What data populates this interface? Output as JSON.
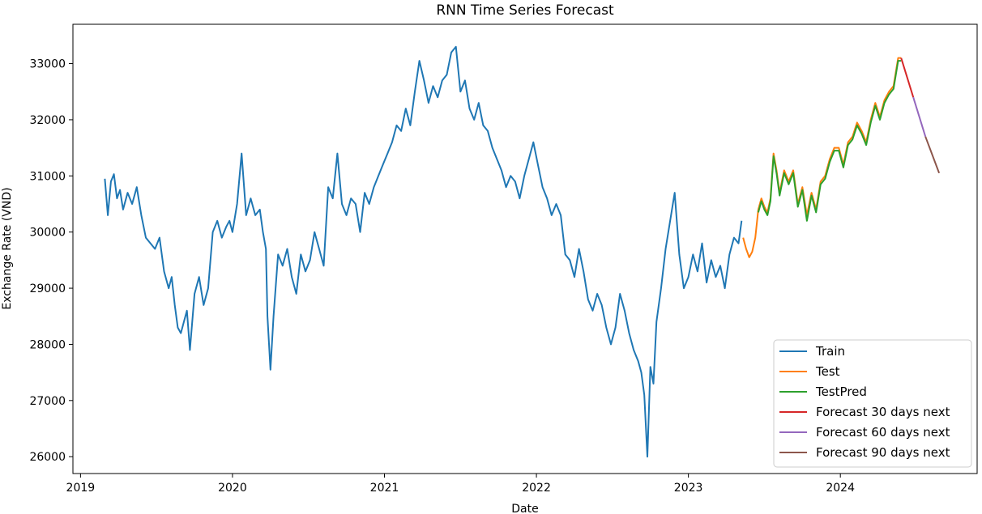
{
  "chart_data": {
    "type": "line",
    "title": "RNN Time Series Forecast",
    "xlabel": "Date",
    "ylabel": "Exchange Rate (VND)",
    "x_unit": "year",
    "xlim": [
      2018.95,
      2024.9
    ],
    "ylim": [
      25700,
      33700
    ],
    "xticks": [
      2019,
      2020,
      2021,
      2022,
      2023,
      2024
    ],
    "xtick_labels": [
      "2019",
      "2020",
      "2021",
      "2022",
      "2023",
      "2024"
    ],
    "yticks": [
      26000,
      27000,
      28000,
      29000,
      30000,
      31000,
      32000,
      33000
    ],
    "ytick_labels": [
      "26000",
      "27000",
      "28000",
      "29000",
      "30000",
      "31000",
      "32000",
      "33000"
    ],
    "grid": false,
    "legend_position": "lower-right",
    "series": [
      {
        "name": "Train",
        "color": "#1f77b4",
        "x": [
          2019.16,
          2019.18,
          2019.2,
          2019.22,
          2019.24,
          2019.26,
          2019.28,
          2019.31,
          2019.34,
          2019.37,
          2019.4,
          2019.43,
          2019.46,
          2019.49,
          2019.52,
          2019.55,
          2019.58,
          2019.6,
          2019.62,
          2019.64,
          2019.66,
          2019.68,
          2019.7,
          2019.72,
          2019.75,
          2019.78,
          2019.81,
          2019.84,
          2019.87,
          2019.9,
          2019.93,
          2019.96,
          2019.98,
          2020.0,
          2020.03,
          2020.06,
          2020.09,
          2020.12,
          2020.15,
          2020.18,
          2020.2,
          2020.22,
          2020.23,
          2020.25,
          2020.27,
          2020.3,
          2020.33,
          2020.36,
          2020.39,
          2020.42,
          2020.45,
          2020.48,
          2020.51,
          2020.54,
          2020.57,
          2020.6,
          2020.63,
          2020.66,
          2020.69,
          2020.72,
          2020.75,
          2020.78,
          2020.81,
          2020.84,
          2020.87,
          2020.9,
          2020.93,
          2020.96,
          2020.99,
          2021.02,
          2021.05,
          2021.08,
          2021.11,
          2021.14,
          2021.17,
          2021.2,
          2021.23,
          2021.26,
          2021.29,
          2021.32,
          2021.35,
          2021.38,
          2021.41,
          2021.44,
          2021.47,
          2021.5,
          2021.53,
          2021.56,
          2021.59,
          2021.62,
          2021.65,
          2021.68,
          2021.71,
          2021.74,
          2021.77,
          2021.8,
          2021.83,
          2021.86,
          2021.89,
          2021.92,
          2021.95,
          2021.98,
          2022.01,
          2022.04,
          2022.07,
          2022.1,
          2022.13,
          2022.16,
          2022.19,
          2022.22,
          2022.25,
          2022.28,
          2022.31,
          2022.34,
          2022.37,
          2022.4,
          2022.43,
          2022.46,
          2022.49,
          2022.52,
          2022.55,
          2022.58,
          2022.61,
          2022.64,
          2022.67,
          2022.69,
          2022.71,
          2022.73,
          2022.75,
          2022.77,
          2022.79,
          2022.82,
          2022.85,
          2022.88,
          2022.91,
          2022.94,
          2022.97,
          2023.0,
          2023.03,
          2023.06,
          2023.09,
          2023.12,
          2023.15,
          2023.18,
          2023.21,
          2023.24,
          2023.27,
          2023.3,
          2023.33,
          2023.35
        ],
        "y": [
          30950,
          30300,
          30900,
          31030,
          30600,
          30750,
          30400,
          30700,
          30500,
          30800,
          30300,
          29900,
          29800,
          29700,
          29900,
          29300,
          29000,
          29200,
          28700,
          28300,
          28200,
          28400,
          28600,
          27900,
          28900,
          29200,
          28700,
          29000,
          30000,
          30200,
          29900,
          30100,
          30200,
          30000,
          30500,
          31400,
          30300,
          30600,
          30300,
          30400,
          30000,
          29700,
          28500,
          27550,
          28500,
          29600,
          29400,
          29700,
          29200,
          28900,
          29600,
          29300,
          29500,
          30000,
          29700,
          29400,
          30800,
          30600,
          31400,
          30500,
          30300,
          30600,
          30500,
          30000,
          30700,
          30500,
          30800,
          31000,
          31200,
          31400,
          31600,
          31900,
          31800,
          32200,
          31900,
          32500,
          33050,
          32700,
          32300,
          32600,
          32400,
          32700,
          32800,
          33200,
          33300,
          32500,
          32700,
          32200,
          32000,
          32300,
          31900,
          31800,
          31500,
          31300,
          31100,
          30800,
          31000,
          30900,
          30600,
          31000,
          31300,
          31600,
          31200,
          30800,
          30600,
          30300,
          30500,
          30300,
          29600,
          29500,
          29200,
          29700,
          29300,
          28800,
          28600,
          28900,
          28700,
          28300,
          28000,
          28300,
          28900,
          28600,
          28200,
          27900,
          27700,
          27500,
          27100,
          26000,
          27600,
          27300,
          28400,
          29000,
          29700,
          30200,
          30700,
          29600,
          29000,
          29200,
          29600,
          29300,
          29800,
          29100,
          29500,
          29200,
          29400,
          29000,
          29600,
          29900,
          29800,
          30200
        ]
      },
      {
        "name": "Test",
        "color": "#ff7f0e",
        "x": [
          2023.36,
          2023.38,
          2023.4,
          2023.42,
          2023.44,
          2023.46,
          2023.48,
          2023.5,
          2023.52,
          2023.54,
          2023.56,
          2023.58,
          2023.6,
          2023.63,
          2023.66,
          2023.69,
          2023.72,
          2023.75,
          2023.78,
          2023.81,
          2023.84,
          2023.87,
          2023.9,
          2023.93,
          2023.96,
          2023.99,
          2024.02,
          2024.05,
          2024.08,
          2024.11,
          2024.14,
          2024.17,
          2024.2,
          2024.23,
          2024.26,
          2024.29,
          2024.32,
          2024.35,
          2024.38,
          2024.4
        ],
        "y": [
          29900,
          29700,
          29550,
          29650,
          29900,
          30400,
          30600,
          30450,
          30350,
          30600,
          31400,
          31100,
          30700,
          31100,
          30900,
          31100,
          30500,
          30800,
          30300,
          30700,
          30400,
          30900,
          31000,
          31300,
          31500,
          31500,
          31200,
          31600,
          31700,
          31950,
          31800,
          31600,
          32000,
          32300,
          32050,
          32350,
          32500,
          32600,
          33100,
          33100
        ]
      },
      {
        "name": "TestPred",
        "color": "#2ca02c",
        "x": [
          2023.46,
          2023.48,
          2023.5,
          2023.52,
          2023.54,
          2023.56,
          2023.58,
          2023.6,
          2023.63,
          2023.66,
          2023.69,
          2023.72,
          2023.75,
          2023.78,
          2023.81,
          2023.84,
          2023.87,
          2023.9,
          2023.93,
          2023.96,
          2023.99,
          2024.02,
          2024.05,
          2024.08,
          2024.11,
          2024.14,
          2024.17,
          2024.2,
          2024.23,
          2024.26,
          2024.29,
          2024.32,
          2024.35,
          2024.38,
          2024.4
        ],
        "y": [
          30350,
          30550,
          30400,
          30300,
          30550,
          31350,
          31050,
          30650,
          31050,
          30850,
          31050,
          30450,
          30750,
          30200,
          30650,
          30350,
          30850,
          30950,
          31250,
          31450,
          31450,
          31150,
          31550,
          31650,
          31900,
          31750,
          31550,
          31950,
          32250,
          32000,
          32300,
          32450,
          32550,
          33050,
          33050
        ]
      },
      {
        "name": "Forecast 30 days next",
        "color": "#d62728",
        "x": [
          2024.4,
          2024.48
        ],
        "y": [
          33100,
          32400
        ]
      },
      {
        "name": "Forecast 60 days next",
        "color": "#9467bd",
        "x": [
          2024.48,
          2024.56
        ],
        "y": [
          32400,
          31700
        ]
      },
      {
        "name": "Forecast 90 days next",
        "color": "#8c564b",
        "x": [
          2024.56,
          2024.65
        ],
        "y": [
          31700,
          31050
        ]
      }
    ]
  }
}
